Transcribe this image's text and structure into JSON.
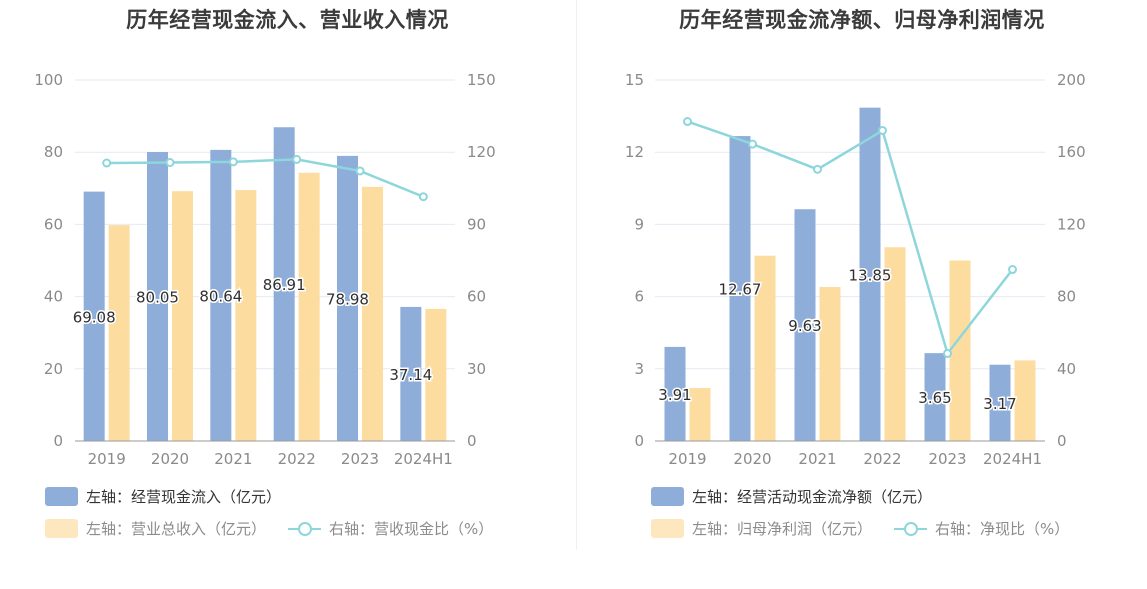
{
  "colors": {
    "bar_primary": "#8eadd9",
    "bar_secondary": "#fddc9f",
    "line": "#8dd6dc",
    "grid": "#e4e9f2",
    "axis": "#9a9a9a"
  },
  "chart_data": [
    {
      "type": "bar",
      "title": "历年经营现金流入、营业收入情况",
      "categories": [
        "2019",
        "2020",
        "2021",
        "2022",
        "2023",
        "2024H1"
      ],
      "left_axis": {
        "min": 0,
        "max": 100,
        "ticks": [
          "0",
          "20",
          "40",
          "60",
          "80",
          "100"
        ]
      },
      "right_axis": {
        "min": 0,
        "max": 150,
        "ticks": [
          "0",
          "30",
          "60",
          "90",
          "120",
          "150"
        ]
      },
      "grid": true,
      "legend_position": "bottom-left",
      "series": [
        {
          "name": "左轴：经营现金流入（亿元）",
          "kind": "bar",
          "axis": "left",
          "color": "#8eadd9",
          "values": [
            69.08,
            80.05,
            80.64,
            86.91,
            78.98,
            37.14
          ],
          "labels": [
            "69.08",
            "80.05",
            "80.64",
            "86.91",
            "78.98",
            "37.14"
          ]
        },
        {
          "name": "左轴：营业总收入（亿元）",
          "kind": "bar",
          "axis": "left",
          "color": "#fddc9f",
          "values": [
            59.8,
            69.2,
            69.5,
            74.3,
            70.4,
            36.6
          ]
        },
        {
          "name": "右轴：营收现金比（%）",
          "kind": "line",
          "axis": "right",
          "color": "#8dd6dc",
          "values": [
            115.5,
            115.7,
            116.0,
            117.0,
            112.2,
            101.5
          ]
        }
      ]
    },
    {
      "type": "bar",
      "title": "历年经营现金流净额、归母净利润情况",
      "categories": [
        "2019",
        "2020",
        "2021",
        "2022",
        "2023",
        "2024H1"
      ],
      "left_axis": {
        "min": 0,
        "max": 15,
        "ticks": [
          "0",
          "3",
          "6",
          "9",
          "12",
          "15"
        ]
      },
      "right_axis": {
        "min": 0,
        "max": 200,
        "ticks": [
          "0",
          "40",
          "80",
          "120",
          "160",
          "200"
        ]
      },
      "grid": true,
      "legend_position": "bottom-left",
      "series": [
        {
          "name": "左轴：经营活动现金流净额（亿元）",
          "kind": "bar",
          "axis": "left",
          "color": "#8eadd9",
          "values": [
            3.91,
            12.67,
            9.63,
            13.85,
            3.65,
            3.17
          ],
          "labels": [
            "3.91",
            "12.67",
            "9.63",
            "13.85",
            "3.65",
            "3.17"
          ]
        },
        {
          "name": "左轴：归母净利润（亿元）",
          "kind": "bar",
          "axis": "left",
          "color": "#fddc9f",
          "values": [
            2.2,
            7.7,
            6.4,
            8.05,
            7.5,
            3.35
          ]
        },
        {
          "name": "右轴：净现比（%）",
          "kind": "line",
          "axis": "right",
          "color": "#8dd6dc",
          "values": [
            177,
            164.5,
            150.5,
            172,
            48.5,
            95
          ]
        }
      ]
    }
  ]
}
